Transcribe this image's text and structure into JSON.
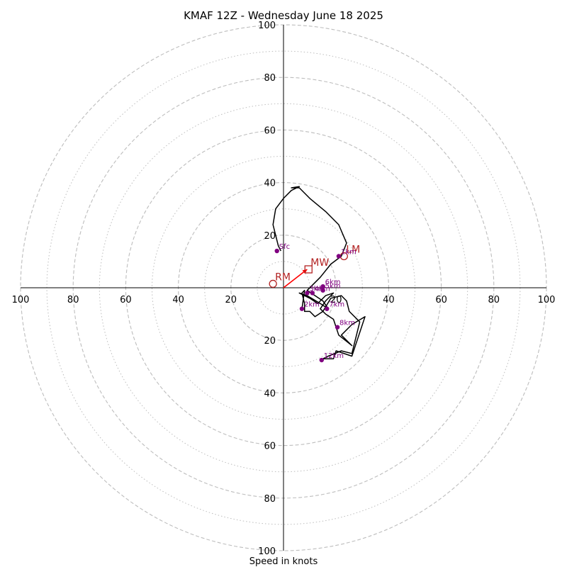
{
  "chart_data": {
    "type": "hodograph",
    "title": "KMAF 12Z - Wednesday June 18 2025",
    "xlabel": "Speed in knots",
    "ylabel": "",
    "xlim": [
      -100,
      100
    ],
    "ylim": [
      -100,
      100
    ],
    "axis_ticks": {
      "left": [
        "100",
        "80",
        "60",
        "40",
        "20"
      ],
      "right": [
        "20",
        "40",
        "60",
        "80",
        "100"
      ],
      "top": [
        "20",
        "40",
        "60",
        "80",
        "100"
      ],
      "bottom": [
        "20",
        "40",
        "60",
        "80",
        "100"
      ]
    },
    "rings": {
      "dashed": [
        20,
        40,
        60,
        80,
        100
      ],
      "dotted": [
        10,
        30,
        50,
        70,
        90
      ],
      "color": "#bdbdbd"
    },
    "hodograph": {
      "color": "#000000",
      "points": [
        [
          -1,
          14
        ],
        [
          -2,
          16
        ],
        [
          -3,
          20
        ],
        [
          -4,
          24
        ],
        [
          -3,
          30
        ],
        [
          0,
          34
        ],
        [
          3,
          37
        ],
        [
          6,
          38.5
        ],
        [
          3,
          38
        ],
        [
          6,
          38
        ],
        [
          10,
          34
        ],
        [
          16,
          29
        ],
        [
          21,
          24
        ],
        [
          24,
          17
        ],
        [
          22,
          12
        ],
        [
          18,
          9
        ],
        [
          14,
          4
        ],
        [
          9,
          -1
        ],
        [
          12,
          -3
        ],
        [
          15,
          -5
        ],
        [
          17,
          -8
        ],
        [
          14,
          -6
        ],
        [
          9,
          -3
        ],
        [
          6,
          -2
        ],
        [
          10,
          -4
        ],
        [
          13,
          -6
        ],
        [
          16,
          -3
        ],
        [
          19,
          -2
        ],
        [
          16,
          -5
        ],
        [
          14,
          -8
        ],
        [
          16,
          -10
        ],
        [
          19,
          -12
        ],
        [
          21,
          -18
        ],
        [
          26,
          -22
        ],
        [
          22,
          -18
        ],
        [
          26,
          -14
        ],
        [
          31,
          -11
        ],
        [
          28,
          -20
        ],
        [
          26,
          -26
        ],
        [
          20,
          -24
        ],
        [
          19,
          -27
        ],
        [
          15,
          -27
        ],
        [
          17,
          -26
        ],
        [
          22,
          -24
        ],
        [
          26,
          -25
        ],
        [
          29,
          -13
        ],
        [
          25,
          -9
        ],
        [
          24,
          -5
        ],
        [
          22,
          -3
        ],
        [
          18,
          -4
        ],
        [
          15,
          -9
        ],
        [
          12,
          -11
        ],
        [
          10,
          -9
        ],
        [
          8,
          -9
        ],
        [
          8,
          -8
        ],
        [
          8,
          -6
        ],
        [
          7,
          -2
        ],
        [
          8,
          -1
        ],
        [
          7,
          -8
        ]
      ]
    },
    "height_markers": {
      "color": "#800080",
      "items": [
        {
          "label": "Sfc",
          "u": -2.5,
          "v": 14
        },
        {
          "label": "1km",
          "u": 21,
          "v": 12
        },
        {
          "label": "2km",
          "u": 7,
          "v": -8
        },
        {
          "label": "3km",
          "u": 9,
          "v": -2
        },
        {
          "label": "4km",
          "u": 11,
          "v": -2
        },
        {
          "label": "5km",
          "u": 15,
          "v": -1
        },
        {
          "label": "6km",
          "u": 15,
          "v": 0.5
        },
        {
          "label": "7km",
          "u": 16.5,
          "v": -8
        },
        {
          "label": "8km",
          "u": 20.5,
          "v": -15
        },
        {
          "label": "12km",
          "u": 14.5,
          "v": -27.5
        }
      ]
    },
    "storm_motion": {
      "color": "#b22222",
      "items": [
        {
          "label": "RM",
          "u": -4,
          "v": 1.5,
          "marker": "circle"
        },
        {
          "label": "LM",
          "u": 23,
          "v": 12,
          "marker": "circle"
        },
        {
          "label": "MW",
          "u": 9.5,
          "v": 7,
          "marker": "square"
        }
      ],
      "shear_vector": {
        "color": "#ff0000",
        "from": [
          0,
          0
        ],
        "to": [
          9,
          7
        ]
      }
    }
  }
}
